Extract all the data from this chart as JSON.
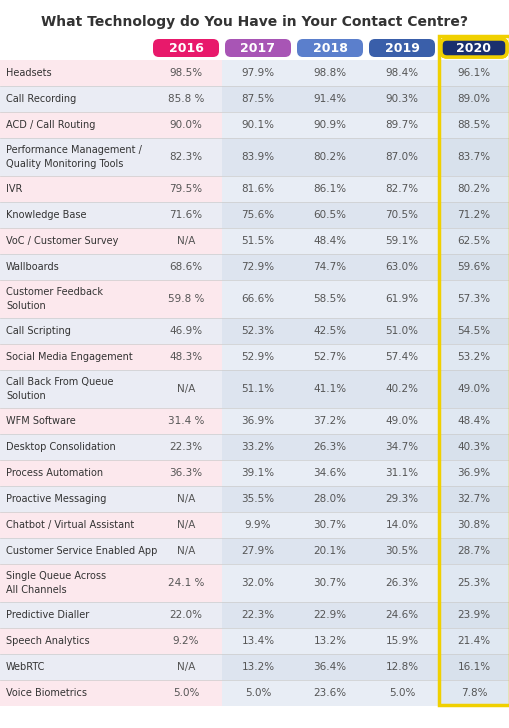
{
  "title": "What Technology do You Have in Your Contact Centre?",
  "columns": [
    "2016",
    "2017",
    "2018",
    "2019",
    "2020"
  ],
  "col_colors": [
    "#e8196b",
    "#a855b5",
    "#5b7fcc",
    "#3a5faa",
    "#1a2f6e"
  ],
  "rows": [
    {
      "label": "Headsets",
      "values": [
        "98.5%",
        "97.9%",
        "98.8%",
        "98.4%",
        "96.1%"
      ]
    },
    {
      "label": "Call Recording",
      "values": [
        "85.8 %",
        "87.5%",
        "91.4%",
        "90.3%",
        "89.0%"
      ]
    },
    {
      "label": "ACD / Call Routing",
      "values": [
        "90.0%",
        "90.1%",
        "90.9%",
        "89.7%",
        "88.5%"
      ]
    },
    {
      "label": "Performance Management /\nQuality Monitoring Tools",
      "values": [
        "82.3%",
        "83.9%",
        "80.2%",
        "87.0%",
        "83.7%"
      ]
    },
    {
      "label": "IVR",
      "values": [
        "79.5%",
        "81.6%",
        "86.1%",
        "82.7%",
        "80.2%"
      ]
    },
    {
      "label": "Knowledge Base",
      "values": [
        "71.6%",
        "75.6%",
        "60.5%",
        "70.5%",
        "71.2%"
      ]
    },
    {
      "label": "VoC / Customer Survey",
      "values": [
        "N/A",
        "51.5%",
        "48.4%",
        "59.1%",
        "62.5%"
      ]
    },
    {
      "label": "Wallboards",
      "values": [
        "68.6%",
        "72.9%",
        "74.7%",
        "63.0%",
        "59.6%"
      ]
    },
    {
      "label": "Customer Feedback\nSolution",
      "values": [
        "59.8 %",
        "66.6%",
        "58.5%",
        "61.9%",
        "57.3%"
      ]
    },
    {
      "label": "Call Scripting",
      "values": [
        "46.9%",
        "52.3%",
        "42.5%",
        "51.0%",
        "54.5%"
      ]
    },
    {
      "label": "Social Media Engagement",
      "values": [
        "48.3%",
        "52.9%",
        "52.7%",
        "57.4%",
        "53.2%"
      ]
    },
    {
      "label": "Call Back From Queue\nSolution",
      "values": [
        "N/A",
        "51.1%",
        "41.1%",
        "40.2%",
        "49.0%"
      ]
    },
    {
      "label": "WFM Software",
      "values": [
        "31.4 %",
        "36.9%",
        "37.2%",
        "49.0%",
        "48.4%"
      ]
    },
    {
      "label": "Desktop Consolidation",
      "values": [
        "22.3%",
        "33.2%",
        "26.3%",
        "34.7%",
        "40.3%"
      ]
    },
    {
      "label": "Process Automation",
      "values": [
        "36.3%",
        "39.1%",
        "34.6%",
        "31.1%",
        "36.9%"
      ]
    },
    {
      "label": "Proactive Messaging",
      "values": [
        "N/A",
        "35.5%",
        "28.0%",
        "29.3%",
        "32.7%"
      ]
    },
    {
      "label": "Chatbot / Virtual Assistant",
      "values": [
        "N/A",
        "9.9%",
        "30.7%",
        "14.0%",
        "30.8%"
      ]
    },
    {
      "label": "Customer Service Enabled App",
      "values": [
        "N/A",
        "27.9%",
        "20.1%",
        "30.5%",
        "28.7%"
      ]
    },
    {
      "label": "Single Queue Across\nAll Channels",
      "values": [
        "24.1 %",
        "32.0%",
        "30.7%",
        "26.3%",
        "25.3%"
      ]
    },
    {
      "label": "Predictive Dialler",
      "values": [
        "22.0%",
        "22.3%",
        "22.9%",
        "24.6%",
        "23.9%"
      ]
    },
    {
      "label": "Speech Analytics",
      "values": [
        "9.2%",
        "13.4%",
        "13.2%",
        "15.9%",
        "21.4%"
      ]
    },
    {
      "label": "WebRTC",
      "values": [
        "N/A",
        "13.2%",
        "36.4%",
        "12.8%",
        "16.1%"
      ]
    },
    {
      "label": "Voice Biometrics",
      "values": [
        "5.0%",
        "5.0%",
        "23.6%",
        "5.0%",
        "7.8%"
      ]
    }
  ],
  "bg_color": "#ffffff",
  "row_bg_even_label": "#fce8ed",
  "row_bg_even_data16": "#fce8ed",
  "row_bg_even_data": "#e8eef6",
  "row_bg_odd_label": "#edf0f8",
  "row_bg_odd_data16": "#edf0f8",
  "row_bg_odd_data": "#dde4f0",
  "cell_text_color": "#555555",
  "label_text_color": "#333333",
  "title_color": "#333333",
  "last_col_border_color": "#e8d800",
  "yellow_border_color": "#f0d000"
}
